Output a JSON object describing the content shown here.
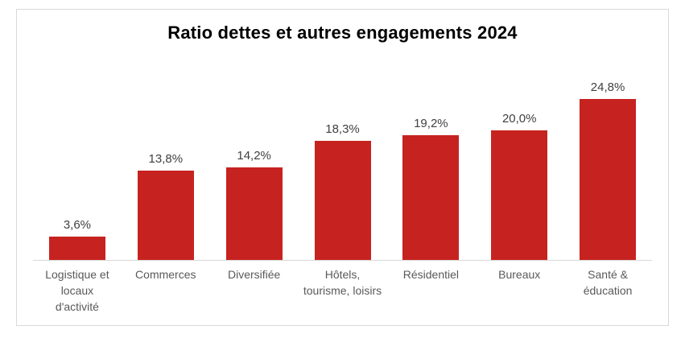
{
  "chart": {
    "title": "Ratio dettes et autres engagements 2024",
    "colors": {
      "bar": "#C62320",
      "axis_line": "#D9D9D9",
      "frame_border": "#D9D9D9",
      "data_label": "#404040",
      "category_label": "#595959",
      "title": "#000000"
    }
  },
  "chart_data": {
    "type": "bar",
    "title": "Ratio dettes et autres engagements 2024",
    "categories": [
      "Logistique et locaux d'activité",
      "Commerces",
      "Diversifiée",
      "Hôtels, tourisme, loisirs",
      "Résidentiel",
      "Bureaux",
      "Santé & éducation"
    ],
    "values": [
      3.6,
      13.8,
      14.2,
      18.3,
      19.2,
      20.0,
      24.8
    ],
    "data_labels": [
      "3,6%",
      "13,8%",
      "14,2%",
      "18,3%",
      "19,2%",
      "20,0%",
      "24,8%"
    ],
    "xlabel": "",
    "ylabel": "",
    "ylim": [
      0,
      30
    ],
    "grid": false,
    "legend": "none",
    "bar_color": "#C62320"
  }
}
